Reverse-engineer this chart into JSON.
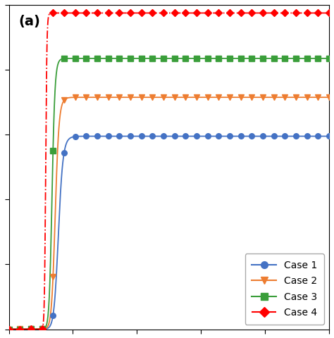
{
  "title": "",
  "panel_label": "(a)",
  "xlabel": "",
  "ylabel": "",
  "xlim": [
    0,
    1.0
  ],
  "ylim": [
    0,
    1.0
  ],
  "cases": [
    {
      "name": "Case 1",
      "color": "#4472C4",
      "marker": "o",
      "linestyle": "-",
      "plateau": 0.595,
      "k": 22,
      "t0": 0.155,
      "n": 0.55
    },
    {
      "name": "Case 2",
      "color": "#ED7D31",
      "marker": "v",
      "linestyle": "-",
      "plateau": 0.715,
      "k": 25,
      "t0": 0.145,
      "n": 0.55
    },
    {
      "name": "Case 3",
      "color": "#3A9E3A",
      "marker": "s",
      "linestyle": "-",
      "plateau": 0.835,
      "k": 30,
      "t0": 0.135,
      "n": 0.55
    },
    {
      "name": "Case 4",
      "color": "#FF0000",
      "marker": "D",
      "linestyle": "-.",
      "plateau": 0.975,
      "k": 60,
      "t0": 0.115,
      "n": 0.55
    }
  ],
  "n_points": 30,
  "background_color": "#ffffff",
  "legend_fontsize": 10,
  "panel_fontsize": 14
}
